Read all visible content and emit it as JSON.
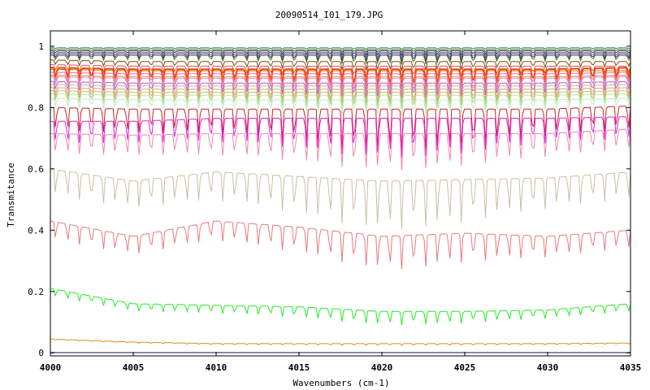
{
  "chart_data": {
    "type": "line",
    "title": "20090514_I01_179.JPG",
    "xlabel": "Wavenumbers (cm-1)",
    "ylabel": "Transmitance",
    "xlim": [
      4000,
      4035
    ],
    "ylim": [
      -0.01,
      1.05
    ],
    "x_ticks": [
      4000,
      4005,
      4010,
      4015,
      4020,
      4025,
      4030,
      4035
    ],
    "x_tick_labels": [
      "4000",
      "4005",
      "4010",
      "4015",
      "4020",
      "4025",
      "4030",
      "4035"
    ],
    "y_ticks": [
      0,
      0.2,
      0.4,
      0.6,
      0.8,
      1
    ],
    "y_tick_labels": [
      "0",
      "0.2",
      "0.4",
      "0.6",
      "0.8",
      "1"
    ],
    "grid": false,
    "legend": "none",
    "series": [
      {
        "color": "#2e8b57",
        "base": [
          0.995,
          0.995,
          0.995,
          0.995,
          0.995,
          0.995,
          0.995,
          0.995
        ],
        "depth": 0.006
      },
      {
        "color": "#556b2f",
        "base": [
          0.99,
          0.99,
          0.99,
          0.99,
          0.99,
          0.99,
          0.99,
          0.99
        ],
        "depth": 0.01
      },
      {
        "color": "#333333",
        "base": [
          0.985,
          0.985,
          0.985,
          0.985,
          0.985,
          0.985,
          0.985,
          0.985
        ],
        "depth": 0.015
      },
      {
        "color": "#4682b4",
        "base": [
          0.98,
          0.98,
          0.98,
          0.98,
          0.98,
          0.98,
          0.98,
          0.98
        ],
        "depth": 0.02
      },
      {
        "color": "#8b008b",
        "base": [
          0.975,
          0.975,
          0.975,
          0.975,
          0.975,
          0.975,
          0.975,
          0.975
        ],
        "depth": 0.025
      },
      {
        "color": "#228b22",
        "base": [
          0.97,
          0.97,
          0.97,
          0.97,
          0.97,
          0.97,
          0.97,
          0.97
        ],
        "depth": 0.03
      },
      {
        "color": "#8b4513",
        "base": [
          0.955,
          0.95,
          0.95,
          0.95,
          0.95,
          0.95,
          0.95,
          0.95
        ],
        "depth": 0.03
      },
      {
        "color": "#cd5c5c",
        "base": [
          0.94,
          0.935,
          0.935,
          0.935,
          0.935,
          0.935,
          0.935,
          0.935
        ],
        "depth": 0.04
      },
      {
        "color": "#b8860b",
        "base": [
          0.925,
          0.92,
          0.92,
          0.92,
          0.92,
          0.92,
          0.92,
          0.92
        ],
        "depth": 0.05
      },
      {
        "color": "#ff4500",
        "base": [
          0.93,
          0.925,
          0.925,
          0.925,
          0.925,
          0.925,
          0.925,
          0.93
        ],
        "depth": 0.07
      },
      {
        "color": "#ff69b4",
        "base": [
          0.915,
          0.91,
          0.91,
          0.91,
          0.91,
          0.91,
          0.91,
          0.915
        ],
        "depth": 0.06
      },
      {
        "color": "#cd853f",
        "base": [
          0.905,
          0.9,
          0.9,
          0.9,
          0.9,
          0.9,
          0.9,
          0.905
        ],
        "depth": 0.06
      },
      {
        "color": "#dda0dd",
        "base": [
          0.9,
          0.895,
          0.895,
          0.895,
          0.895,
          0.895,
          0.895,
          0.9
        ],
        "depth": 0.06
      },
      {
        "color": "#ba55d3",
        "base": [
          0.885,
          0.88,
          0.88,
          0.88,
          0.88,
          0.88,
          0.88,
          0.885
        ],
        "depth": 0.05
      },
      {
        "color": "#d2b48c",
        "base": [
          0.875,
          0.87,
          0.87,
          0.87,
          0.87,
          0.87,
          0.87,
          0.875
        ],
        "depth": 0.06
      },
      {
        "color": "#bdb76b",
        "base": [
          0.865,
          0.86,
          0.86,
          0.86,
          0.86,
          0.86,
          0.86,
          0.865
        ],
        "depth": 0.06
      },
      {
        "color": "#ffa07a",
        "base": [
          0.855,
          0.85,
          0.85,
          0.85,
          0.85,
          0.85,
          0.85,
          0.855
        ],
        "depth": 0.06
      },
      {
        "color": "#98fb98",
        "base": [
          0.845,
          0.84,
          0.84,
          0.84,
          0.84,
          0.84,
          0.84,
          0.845
        ],
        "depth": 0.05
      },
      {
        "color": "#c8e6c8",
        "base": [
          0.83,
          0.825,
          0.825,
          0.825,
          0.825,
          0.825,
          0.825,
          0.83
        ],
        "depth": 0.05
      },
      {
        "color": "#cc2222",
        "base": [
          0.8,
          0.795,
          0.795,
          0.795,
          0.795,
          0.795,
          0.795,
          0.805
        ],
        "depth": 0.14
      },
      {
        "color": "#e020e0",
        "base": [
          0.755,
          0.755,
          0.765,
          0.765,
          0.765,
          0.765,
          0.765,
          0.77
        ],
        "depth": 0.13
      },
      {
        "color": "#f088a8",
        "base": [
          0.715,
          0.71,
          0.715,
          0.715,
          0.715,
          0.715,
          0.715,
          0.73
        ],
        "depth": 0.12
      },
      {
        "color": "#c8c0a0",
        "base": [
          0.6,
          0.56,
          0.59,
          0.575,
          0.56,
          0.565,
          0.57,
          0.59
        ],
        "depth": 0.16
      },
      {
        "color": "#e87a7a",
        "base": [
          0.43,
          0.38,
          0.43,
          0.41,
          0.38,
          0.39,
          0.38,
          0.4
        ],
        "depth": 0.11
      },
      {
        "color": "#22ee22",
        "base": [
          0.21,
          0.16,
          0.155,
          0.15,
          0.135,
          0.135,
          0.14,
          0.16
        ],
        "depth": 0.045
      },
      {
        "color": "#e08820",
        "base": [
          0.045,
          0.035,
          0.03,
          0.03,
          0.03,
          0.03,
          0.03,
          0.032
        ],
        "depth": 0.006
      },
      {
        "color": "#6666cc",
        "base": [
          0.0,
          0.0,
          0.0,
          0.0,
          0.0,
          0.0,
          0.0,
          0.0
        ],
        "depth": 0.0
      },
      {
        "color": "#888888",
        "base": [
          0.002,
          0.002,
          0.002,
          0.002,
          0.002,
          0.002,
          0.002,
          0.002
        ],
        "depth": 0.0
      }
    ]
  }
}
